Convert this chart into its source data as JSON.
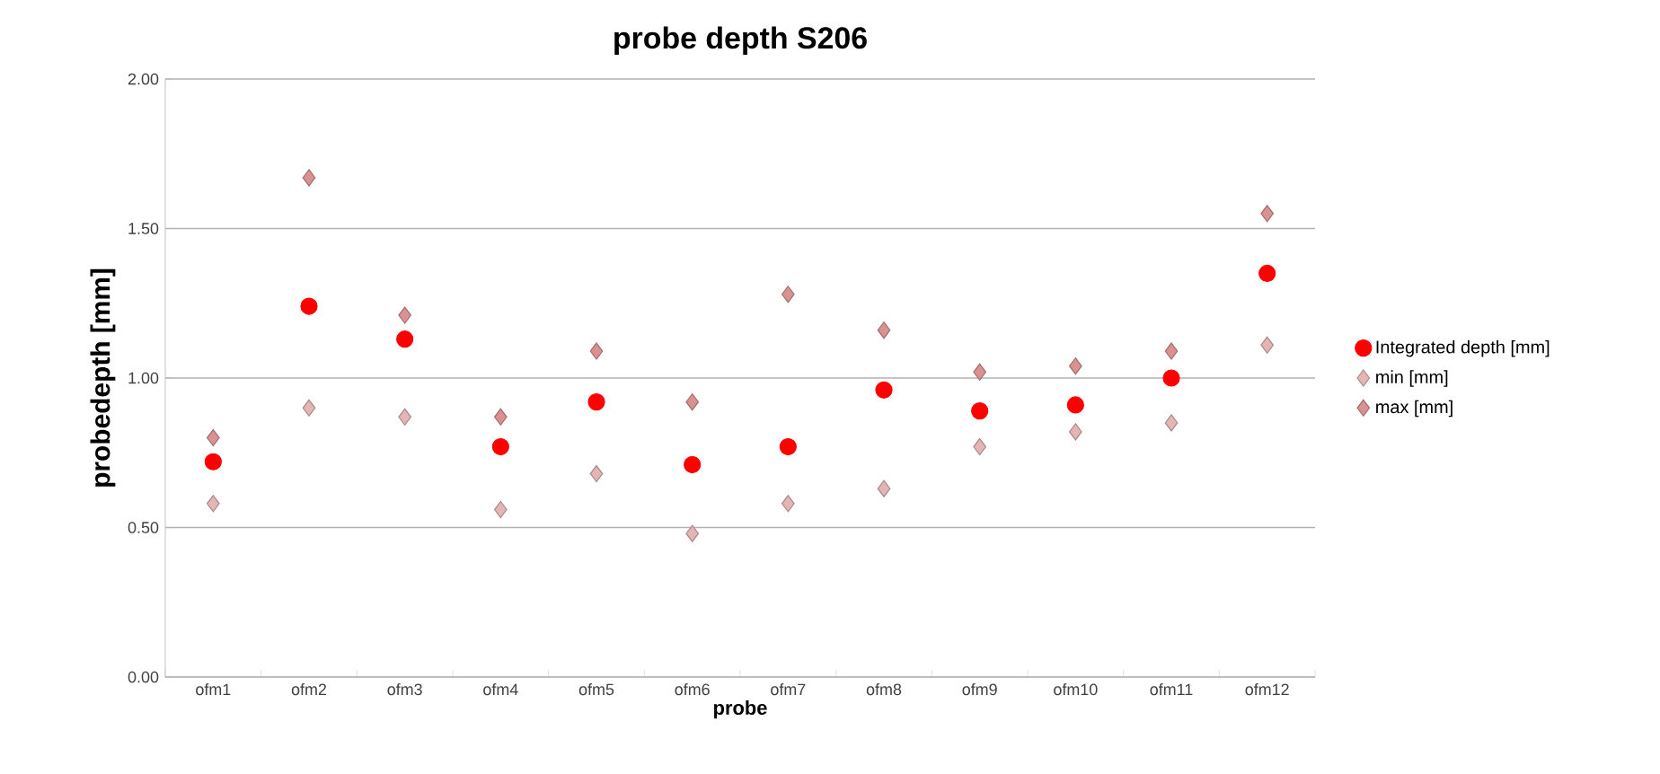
{
  "chart_data": {
    "type": "scatter",
    "title": "probe depth S206",
    "xlabel": "probe",
    "ylabel": "probedepth [mm]",
    "categories": [
      "ofm1",
      "ofm2",
      "ofm3",
      "ofm4",
      "ofm5",
      "ofm6",
      "ofm7",
      "ofm8",
      "ofm9",
      "ofm10",
      "ofm11",
      "ofm12"
    ],
    "series": [
      {
        "name": "Integrated depth [mm]",
        "color": "#ff0000",
        "marker": "circle",
        "values": [
          0.72,
          1.24,
          1.13,
          0.77,
          0.92,
          0.71,
          0.77,
          0.96,
          0.89,
          0.91,
          1.0,
          1.35
        ]
      },
      {
        "name": "min [mm]",
        "color": "#e3b5b5",
        "marker": "diamond",
        "values": [
          0.58,
          0.9,
          0.87,
          0.56,
          0.68,
          0.48,
          0.58,
          0.63,
          0.77,
          0.82,
          0.85,
          1.11
        ]
      },
      {
        "name": "max [mm]",
        "color": "#d99191",
        "marker": "diamond",
        "values": [
          0.8,
          1.67,
          1.21,
          0.87,
          1.09,
          0.92,
          1.28,
          1.16,
          1.02,
          1.04,
          1.09,
          1.55
        ]
      }
    ],
    "ylim": [
      0,
      2
    ],
    "yticks": [
      {
        "value": 0,
        "label": "0.00"
      },
      {
        "value": 0.5,
        "label": "0.50"
      },
      {
        "value": 1,
        "label": "1.00"
      },
      {
        "value": 1.5,
        "label": "1.50"
      },
      {
        "value": 2,
        "label": "2.00"
      }
    ],
    "grid": "y",
    "legend": "right"
  }
}
